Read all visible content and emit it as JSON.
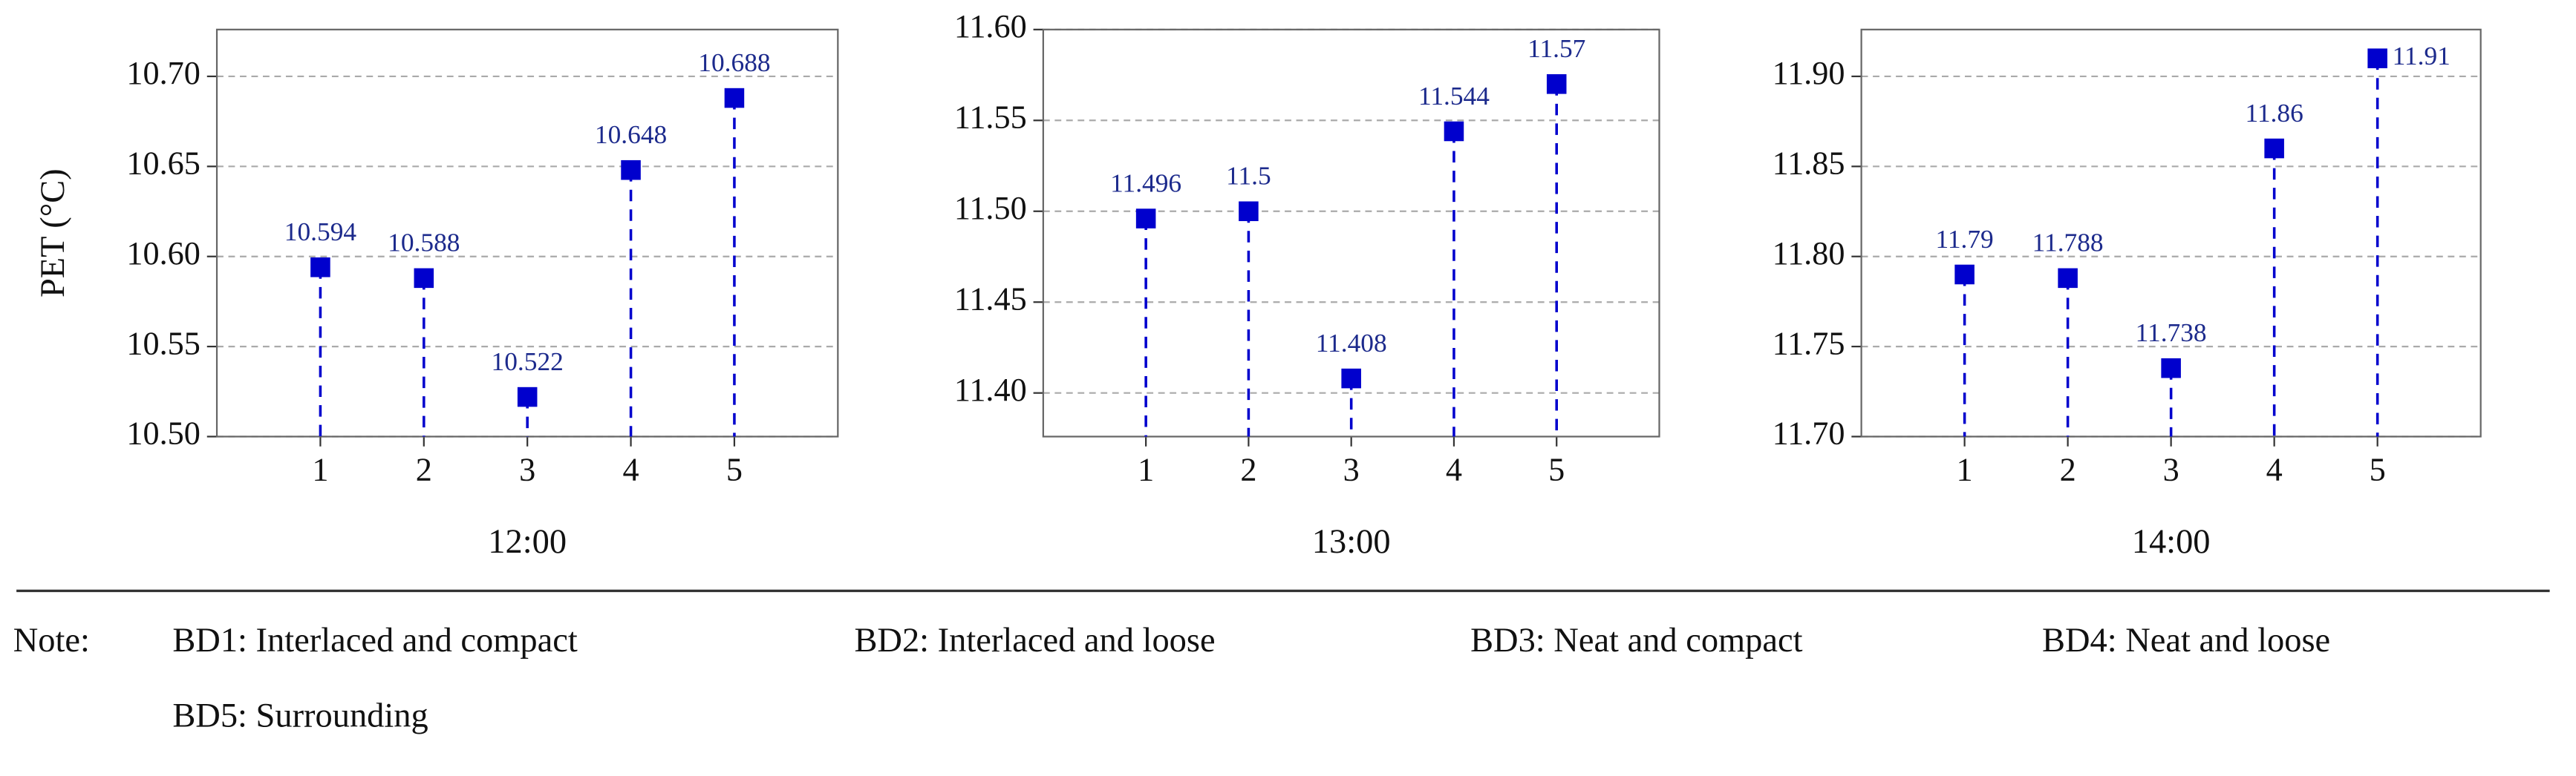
{
  "chart_data": [
    {
      "type": "scatter",
      "xlabel": "12:00",
      "ylabel": "PET (°C)",
      "color": "#0000cd",
      "grid": true,
      "x": [
        1,
        2,
        3,
        4,
        5
      ],
      "values": [
        10.594,
        10.588,
        10.522,
        10.648,
        10.688
      ],
      "xlim": [
        0,
        6
      ],
      "xticks": [
        1,
        2,
        3,
        4,
        5
      ],
      "ylim": [
        10.5,
        10.726
      ],
      "yticks": [
        {
          "value": 10.5,
          "label": "10.50"
        },
        {
          "value": 10.55,
          "label": "10.55"
        },
        {
          "value": 10.6,
          "label": "10.60"
        },
        {
          "value": 10.65,
          "label": "10.65"
        },
        {
          "value": 10.7,
          "label": "10.70"
        }
      ]
    },
    {
      "type": "scatter",
      "xlabel": "13:00",
      "color": "#0000cd",
      "grid": true,
      "x": [
        1,
        2,
        3,
        4,
        5
      ],
      "values": [
        11.496,
        11.5,
        11.408,
        11.544,
        11.57
      ],
      "xlim": [
        0,
        6
      ],
      "xticks": [
        1,
        2,
        3,
        4,
        5
      ],
      "ylim": [
        11.376,
        11.6
      ],
      "yticks": [
        {
          "value": 11.4,
          "label": "11.40"
        },
        {
          "value": 11.45,
          "label": "11.45"
        },
        {
          "value": 11.5,
          "label": "11.50"
        },
        {
          "value": 11.55,
          "label": "11.55"
        },
        {
          "value": 11.6,
          "label": "11.60"
        }
      ]
    },
    {
      "type": "scatter",
      "xlabel": "14:00",
      "color": "#0000cd",
      "grid": true,
      "x": [
        1,
        2,
        3,
        4,
        5
      ],
      "values": [
        11.79,
        11.788,
        11.738,
        11.86,
        11.91
      ],
      "xlim": [
        0,
        6
      ],
      "xticks": [
        1,
        2,
        3,
        4,
        5
      ],
      "ylim": [
        11.7,
        11.926
      ],
      "yticks": [
        {
          "value": 11.7,
          "label": "11.70"
        },
        {
          "value": 11.75,
          "label": "11.75"
        },
        {
          "value": 11.8,
          "label": "11.80"
        },
        {
          "value": 11.85,
          "label": "11.85"
        },
        {
          "value": 11.9,
          "label": "11.90"
        }
      ]
    }
  ],
  "note": {
    "label": "Note:",
    "items": [
      "BD1: Interlaced and compact",
      "BD2: Interlaced and loose",
      "BD3: Neat and compact",
      "BD4: Neat and loose",
      "BD5: Surrounding"
    ]
  }
}
